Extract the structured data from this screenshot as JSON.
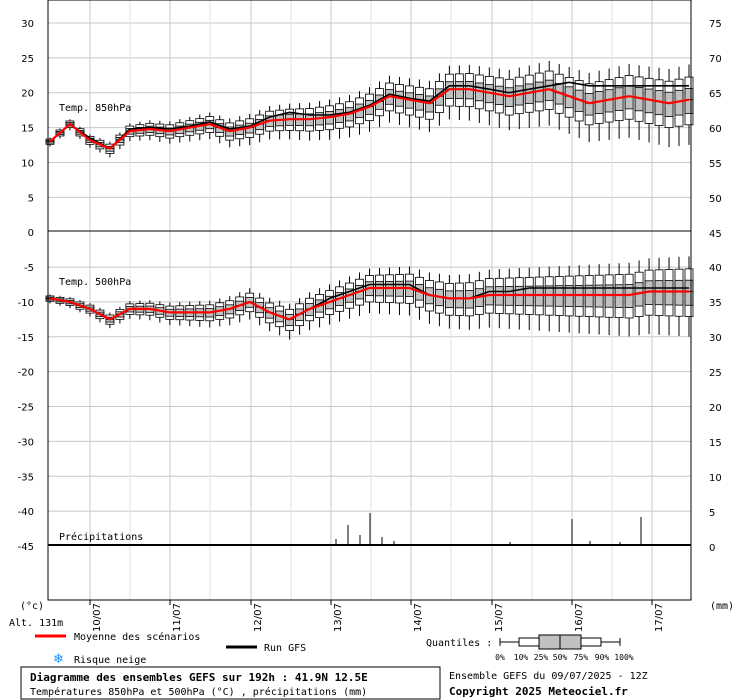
{
  "chart_data": {
    "type": "boxplot-ensemble",
    "x_dates": [
      "10/07",
      "11/07",
      "12/07",
      "13/07",
      "14/07",
      "15/07",
      "16/07",
      "17/07"
    ],
    "y_left_ticks": [
      30,
      25,
      20,
      15,
      10,
      5,
      0,
      -5,
      -10,
      -15,
      -20,
      -25,
      -30,
      -35,
      -40,
      -45
    ],
    "y_right_top_ticks": [
      75,
      70,
      65,
      60,
      55,
      50,
      45
    ],
    "y_right_bottom_ticks": [
      40,
      35,
      30,
      25,
      20,
      15,
      10,
      5,
      0
    ],
    "unit_left": "(°c)",
    "unit_right": "(mm)",
    "altitude": "Alt. 131m",
    "panel_labels": {
      "t850": "Temp. 850hPa",
      "t500": "Temp. 500hPa",
      "precip": "Précipitations"
    },
    "t850": {
      "hours": [
        0,
        6,
        12,
        18,
        24,
        30,
        36,
        42,
        48,
        54,
        60,
        66,
        72,
        78,
        84,
        90,
        96,
        102,
        108,
        114,
        120,
        126,
        132,
        138,
        144,
        150,
        156,
        162,
        168,
        174,
        180,
        186,
        192
      ],
      "mean": [
        13,
        15.5,
        13.2,
        12,
        14.5,
        14.8,
        14.5,
        15,
        15.5,
        14.5,
        15,
        16,
        16.2,
        16.2,
        16.5,
        17,
        18,
        19.5,
        19,
        18.5,
        20.5,
        20.5,
        20,
        19.5,
        20,
        20.5,
        19.5,
        18.5,
        19,
        19.5,
        19,
        18.5,
        19
      ],
      "gfs": [
        13,
        15.5,
        13.5,
        12,
        14.8,
        15,
        14.8,
        15.2,
        15.8,
        14.8,
        15.2,
        16.5,
        17.2,
        16.8,
        16.8,
        17.2,
        18.2,
        19.8,
        19.2,
        18.8,
        21,
        21,
        20.5,
        20,
        20.5,
        21,
        21.5,
        21,
        21,
        21,
        21,
        21,
        21
      ]
    },
    "t500": {
      "hours": [
        0,
        6,
        12,
        18,
        24,
        30,
        36,
        42,
        48,
        54,
        60,
        66,
        72,
        78,
        84,
        90,
        96,
        102,
        108,
        114,
        120,
        126,
        132,
        138,
        144,
        150,
        156,
        162,
        168,
        174,
        180,
        186,
        192
      ],
      "mean": [
        -9.5,
        -10,
        -11,
        -12.5,
        -11,
        -11,
        -11.5,
        -11.5,
        -11.5,
        -11,
        -10,
        -11.5,
        -12.5,
        -11,
        -10,
        -9,
        -8,
        -8,
        -8,
        -9,
        -9.5,
        -9.5,
        -9,
        -9,
        -9,
        -9,
        -9,
        -9,
        -9,
        -9,
        -8.5,
        -8.5,
        -8.5
      ],
      "gfs": [
        -9.5,
        -10,
        -11,
        -12.5,
        -11,
        -11,
        -11.5,
        -11.5,
        -11.5,
        -11,
        -10,
        -11.5,
        -12.5,
        -11,
        -9.5,
        -8.5,
        -7.5,
        -7.5,
        -7.5,
        -9,
        -9.5,
        -9.5,
        -8.5,
        -8.5,
        -8,
        -8,
        -8,
        -8,
        -8,
        -8,
        -8,
        -8,
        -8
      ]
    },
    "legend": {
      "mean_label": "Moyenne des scénarios",
      "gfs_label": "Run GFS",
      "snow_label": "Risque neige",
      "quantiles_label": "Quantiles :",
      "quantile_values": [
        "0%",
        "10%",
        "25%",
        "50%",
        "75%",
        "90%",
        "100%"
      ]
    },
    "colors": {
      "mean": "#ff0000",
      "gfs": "#000000",
      "box": "#c0c0c0",
      "grid": "#c8c8c8",
      "snow": "#1e90ff"
    },
    "title": "Diagramme des ensembles GEFS sur 192h : 41.9N 12.5E",
    "subtitle": "Températures 850hPa et 500hPa (°C) , précipitations (mm)",
    "run": "Ensemble GEFS du 09/07/2025 - 12Z",
    "copyright": "Copyright 2025 Meteociel.fr"
  }
}
